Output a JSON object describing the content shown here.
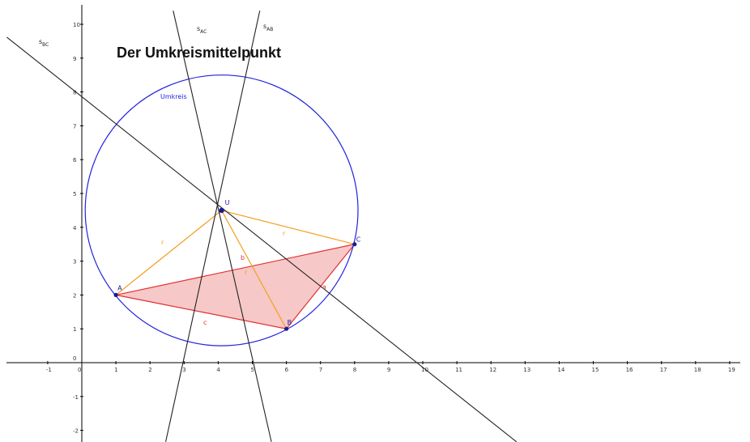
{
  "title": "Der Umkreismittelpunkt",
  "colors": {
    "axis": "#000000",
    "circle": "#2222dd",
    "triangle_edge": "#e03030",
    "triangle_fill": "#f7c8c8",
    "radius": "#f2a020",
    "bisector": "#222222",
    "point": "#1a1a99"
  },
  "axes": {
    "x_ticks": [
      "-1",
      "0",
      "1",
      "2",
      "3",
      "4",
      "5",
      "6",
      "7",
      "8",
      "9",
      "10",
      "11",
      "12",
      "13",
      "14",
      "15",
      "16",
      "17",
      "18",
      "19"
    ],
    "y_ticks": [
      "-2",
      "-1",
      "0",
      "1",
      "2",
      "3",
      "4",
      "5",
      "6",
      "7",
      "8",
      "9",
      "10"
    ]
  },
  "points": {
    "A": {
      "label": "A",
      "x": 1,
      "y": 2
    },
    "B": {
      "label": "B",
      "x": 6,
      "y": 1
    },
    "C": {
      "label": "C",
      "x": 8,
      "y": 3.5
    },
    "U": {
      "label": "U",
      "x": 4.1,
      "y": 4.5
    }
  },
  "segment_labels": {
    "a": "a",
    "b": "b",
    "c": "c",
    "r": "r"
  },
  "circle_label": "Umkreis",
  "circle_radius": 4,
  "bisector_labels": {
    "sBC": {
      "main": "s",
      "sub": "BC"
    },
    "sAC": {
      "main": "s",
      "sub": "AC"
    },
    "sAB": {
      "main": "s",
      "sub": "AB"
    }
  }
}
